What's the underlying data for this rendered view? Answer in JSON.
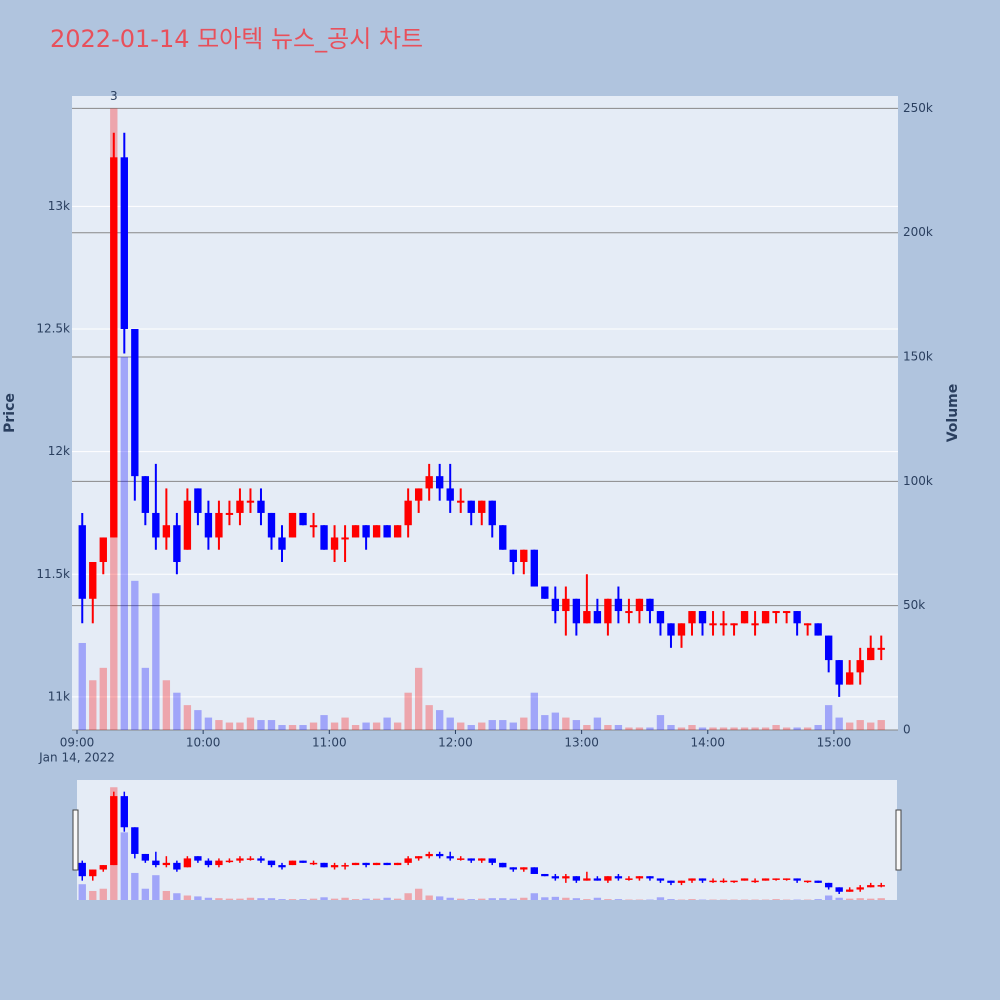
{
  "chart_data": {
    "type": "candlestick",
    "title": "2022-01-14 모아텍 뉴스_공시 차트",
    "ylabel": "Price",
    "y2label": "Volume",
    "date_label": "Jan 14, 2022",
    "up_color": "#ff0000",
    "down_color": "#0000ff",
    "volume_opacity": 0.3,
    "x": [
      "09:00",
      "09:05",
      "09:10",
      "09:15",
      "09:20",
      "09:25",
      "09:30",
      "09:35",
      "09:40",
      "09:45",
      "09:50",
      "09:55",
      "10:00",
      "10:05",
      "10:10",
      "10:15",
      "10:20",
      "10:25",
      "10:30",
      "10:35",
      "10:40",
      "10:45",
      "10:50",
      "10:55",
      "11:00",
      "11:05",
      "11:10",
      "11:15",
      "11:20",
      "11:25",
      "11:30",
      "11:35",
      "11:40",
      "11:45",
      "11:50",
      "11:55",
      "12:00",
      "12:05",
      "12:10",
      "12:15",
      "12:20",
      "12:25",
      "12:30",
      "12:35",
      "12:40",
      "12:45",
      "12:50",
      "12:55",
      "13:00",
      "13:05",
      "13:10",
      "13:15",
      "13:20",
      "13:25",
      "13:30",
      "13:35",
      "13:40",
      "13:45",
      "13:50",
      "13:55",
      "14:00",
      "14:05",
      "14:10",
      "14:15",
      "14:20",
      "14:25",
      "14:30",
      "14:35",
      "14:40",
      "14:45",
      "14:50",
      "14:55",
      "15:00",
      "15:05",
      "15:10",
      "15:15",
      "15:20"
    ],
    "open": [
      11700,
      11400,
      11550,
      11650,
      13200,
      12500,
      11900,
      11750,
      11650,
      11700,
      11600,
      11850,
      11750,
      11650,
      11750,
      11750,
      11800,
      11800,
      11750,
      11650,
      11650,
      11750,
      11700,
      11700,
      11600,
      11650,
      11650,
      11700,
      11650,
      11700,
      11650,
      11700,
      11800,
      11850,
      11900,
      11850,
      11800,
      11800,
      11750,
      11800,
      11700,
      11600,
      11550,
      11600,
      11450,
      11400,
      11350,
      11400,
      11300,
      11350,
      11300,
      11400,
      11350,
      11350,
      11400,
      11350,
      11300,
      11250,
      11300,
      11350,
      11300,
      11300,
      11300,
      11300,
      11300,
      11300,
      11350,
      11350,
      11350,
      11300,
      11300,
      11250,
      11150,
      11050,
      11100,
      11150,
      11200
    ],
    "high": [
      11750,
      11550,
      11650,
      13300,
      13300,
      12500,
      11900,
      11950,
      11850,
      11750,
      11850,
      11850,
      11800,
      11800,
      11800,
      11850,
      11850,
      11850,
      11750,
      11700,
      11750,
      11750,
      11750,
      11700,
      11700,
      11700,
      11700,
      11700,
      11700,
      11700,
      11700,
      11850,
      11850,
      11950,
      11950,
      11950,
      11850,
      11800,
      11800,
      11800,
      11700,
      11600,
      11600,
      11600,
      11450,
      11450,
      11450,
      11400,
      11500,
      11400,
      11400,
      11450,
      11400,
      11400,
      11400,
      11350,
      11300,
      11300,
      11350,
      11350,
      11350,
      11350,
      11300,
      11350,
      11350,
      11350,
      11350,
      11350,
      11350,
      11300,
      11300,
      11250,
      11150,
      11150,
      11200,
      11250,
      11250
    ],
    "low": [
      11300,
      11300,
      11500,
      11650,
      12400,
      11800,
      11700,
      11600,
      11600,
      11500,
      11600,
      11700,
      11600,
      11600,
      11700,
      11700,
      11750,
      11700,
      11600,
      11550,
      11650,
      11700,
      11650,
      11600,
      11550,
      11550,
      11650,
      11600,
      11650,
      11650,
      11650,
      11650,
      11750,
      11800,
      11800,
      11750,
      11750,
      11700,
      11700,
      11650,
      11600,
      11500,
      11500,
      11450,
      11400,
      11300,
      11250,
      11250,
      11300,
      11300,
      11250,
      11300,
      11300,
      11300,
      11300,
      11250,
      11200,
      11200,
      11250,
      11250,
      11250,
      11250,
      11250,
      11300,
      11250,
      11300,
      11300,
      11300,
      11250,
      11250,
      11250,
      11100,
      11000,
      11050,
      11050,
      11150,
      11150
    ],
    "close": [
      11400,
      11550,
      11650,
      13200,
      12500,
      11900,
      11750,
      11650,
      11700,
      11550,
      11800,
      11750,
      11650,
      11750,
      11750,
      11800,
      11800,
      11750,
      11650,
      11600,
      11750,
      11700,
      11700,
      11600,
      11650,
      11650,
      11700,
      11650,
      11700,
      11650,
      11700,
      11800,
      11850,
      11900,
      11850,
      11800,
      11800,
      11750,
      11800,
      11700,
      11600,
      11550,
      11600,
      11450,
      11400,
      11350,
      11400,
      11300,
      11350,
      11300,
      11400,
      11350,
      11350,
      11400,
      11350,
      11300,
      11250,
      11300,
      11350,
      11300,
      11300,
      11300,
      11300,
      11350,
      11300,
      11350,
      11350,
      11350,
      11300,
      11300,
      11250,
      11150,
      11050,
      11100,
      11150,
      11200,
      11200
    ],
    "volume": [
      35000,
      20000,
      25000,
      250000,
      150000,
      60000,
      25000,
      55000,
      20000,
      15000,
      10000,
      8000,
      5000,
      4000,
      3000,
      3000,
      5000,
      4000,
      4000,
      2000,
      2000,
      2000,
      3000,
      6000,
      3000,
      5000,
      2000,
      3000,
      3000,
      5000,
      3000,
      15000,
      25000,
      10000,
      8000,
      5000,
      3000,
      2000,
      3000,
      4000,
      4000,
      3000,
      5000,
      15000,
      6000,
      7000,
      5000,
      4000,
      2000,
      5000,
      2000,
      2000,
      1000,
      1000,
      1000,
      6000,
      2000,
      1000,
      2000,
      1000,
      1000,
      1000,
      1000,
      1000,
      1000,
      1000,
      2000,
      1000,
      1000,
      1000,
      2000,
      10000,
      5000,
      3000,
      4000,
      3000,
      4000
    ],
    "xlim": [
      "09:00",
      "15:30"
    ],
    "xticks": [
      "09:00",
      "10:00",
      "11:00",
      "12:00",
      "13:00",
      "14:00",
      "15:00"
    ],
    "ylim": [
      10865,
      13450
    ],
    "yticks": [
      {
        "value": 11000,
        "label": "11k"
      },
      {
        "value": 11500,
        "label": "11.5k"
      },
      {
        "value": 12000,
        "label": "12k"
      },
      {
        "value": 12500,
        "label": "12.5k"
      },
      {
        "value": 13000,
        "label": "13k"
      }
    ],
    "y2lim": [
      0,
      255000
    ],
    "y2ticks": [
      0,
      {
        "value": 50000,
        "label": "50k"
      },
      {
        "value": 100000,
        "label": "100k"
      },
      {
        "value": 150000,
        "label": "150k"
      },
      {
        "value": 200000,
        "label": "200k"
      },
      {
        "value": 250000,
        "label": "250k"
      }
    ],
    "annotations": [
      {
        "x": "09:15",
        "y": 250000,
        "text": "3"
      }
    ],
    "grid": true
  }
}
